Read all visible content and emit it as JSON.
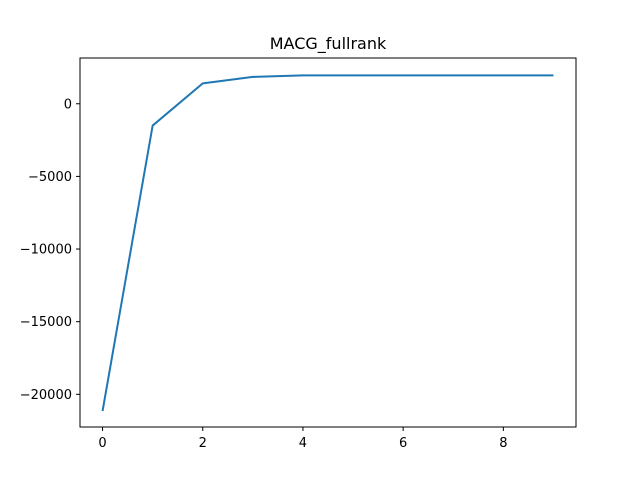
{
  "chart_data": {
    "type": "line",
    "title": "MACG_fullrank",
    "xlabel": "",
    "ylabel": "",
    "xlim": [
      -0.45,
      9.45
    ],
    "ylim": [
      -22250,
      3150
    ],
    "x_ticks": [
      0,
      2,
      4,
      6,
      8
    ],
    "x_tick_labels": [
      "0",
      "2",
      "4",
      "6",
      "8"
    ],
    "y_ticks": [
      -20000,
      -15000,
      -10000,
      -5000,
      0
    ],
    "y_tick_labels": [
      "−20000",
      "−15000",
      "−10000",
      "−5000",
      "0"
    ],
    "grid": false,
    "legend": "none",
    "series": [
      {
        "color": "#1f77b4",
        "x": [
          0,
          1,
          2,
          3,
          4,
          5,
          6,
          7,
          8,
          9
        ],
        "y": [
          -21150,
          -1500,
          1400,
          1850,
          1950,
          1950,
          1950,
          1950,
          1950,
          1950
        ]
      }
    ]
  }
}
